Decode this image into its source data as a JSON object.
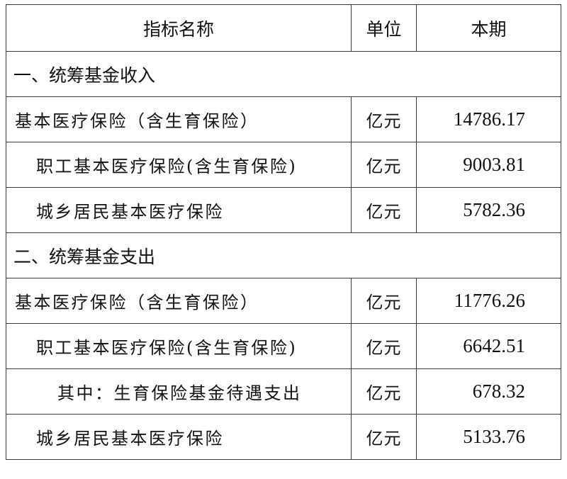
{
  "header": {
    "name": "指标名称",
    "unit": "单位",
    "value": "本期"
  },
  "sections": [
    {
      "title": "一、统筹基金收入",
      "rows": [
        {
          "name": "基本医疗保险（含生育保险）",
          "unit": "亿元",
          "value": "14786.17",
          "indent": 0
        },
        {
          "name": "职工基本医疗保险(含生育保险)",
          "unit": "亿元",
          "value": "9003.81",
          "indent": 1
        },
        {
          "name": "城乡居民基本医疗保险",
          "unit": "亿元",
          "value": "5782.36",
          "indent": 1
        }
      ]
    },
    {
      "title": "二、统筹基金支出",
      "rows": [
        {
          "name": "基本医疗保险（含生育保险）",
          "unit": "亿元",
          "value": "11776.26",
          "indent": 0
        },
        {
          "name": "职工基本医疗保险(含生育保险)",
          "unit": "亿元",
          "value": "6642.51",
          "indent": 1
        },
        {
          "name": "其中：生育保险基金待遇支出",
          "unit": "亿元",
          "value": "678.32",
          "indent": 2
        },
        {
          "name": "城乡居民基本医疗保险",
          "unit": "亿元",
          "value": "5133.76",
          "indent": 1
        }
      ]
    }
  ]
}
